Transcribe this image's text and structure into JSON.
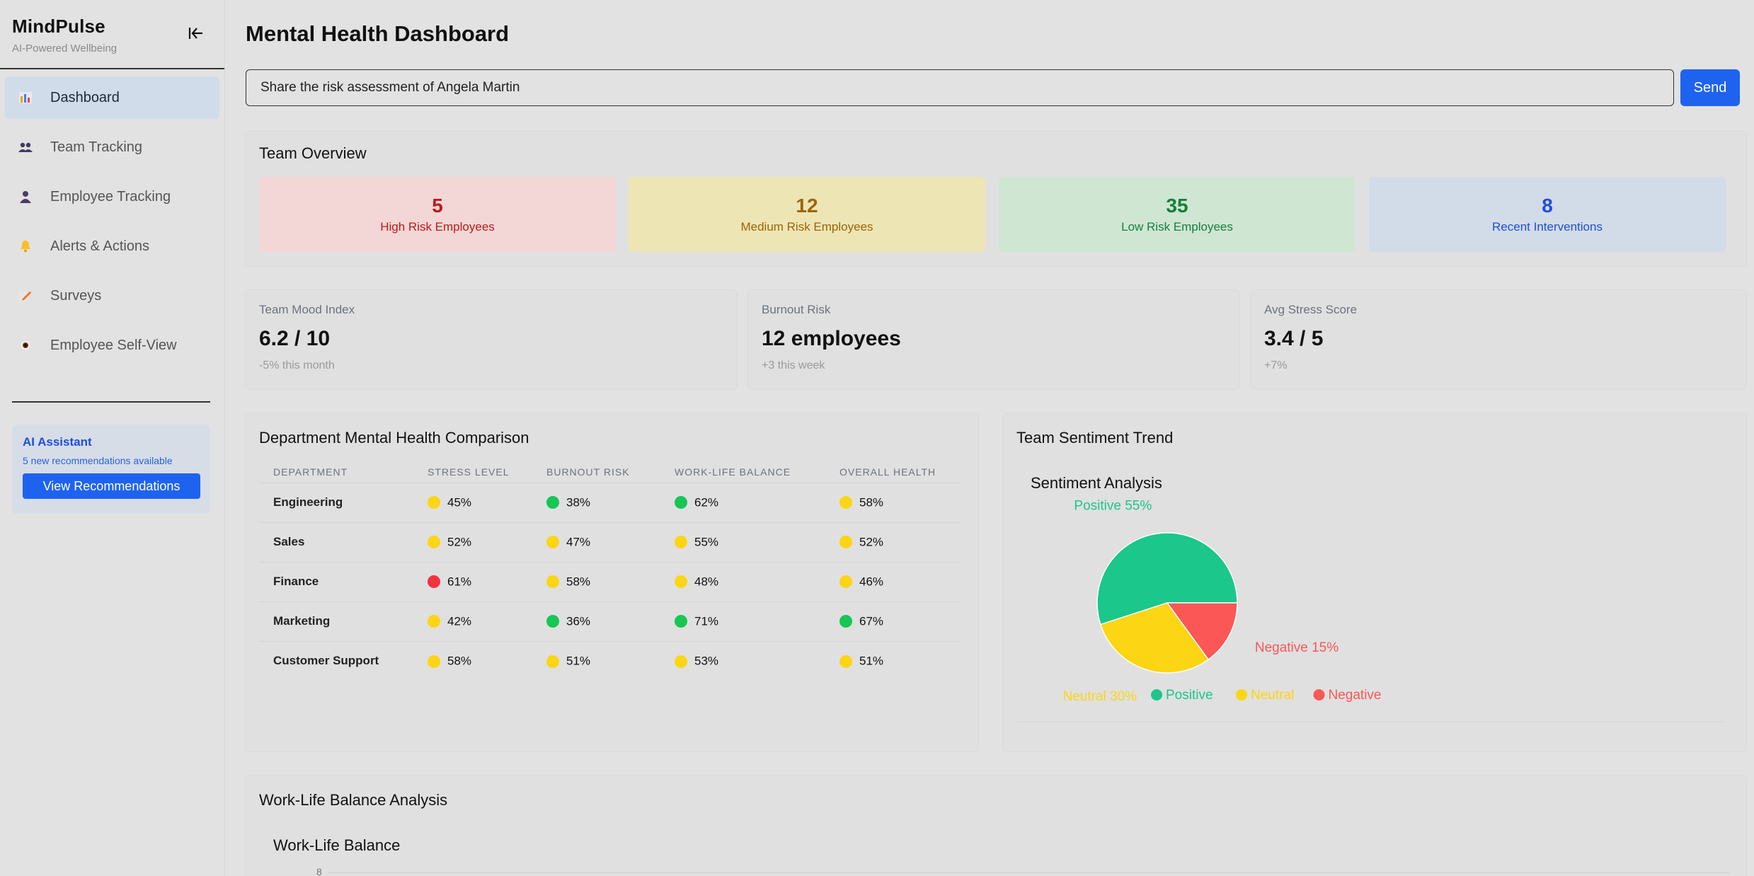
{
  "app": {
    "name": "MindPulse",
    "tagline": "AI-Powered Wellbeing"
  },
  "sidebar": {
    "items": [
      {
        "label": "Dashboard",
        "icon": "bar-chart-icon",
        "active": true
      },
      {
        "label": "Team Tracking",
        "icon": "team-icon"
      },
      {
        "label": "Employee Tracking",
        "icon": "person-icon"
      },
      {
        "label": "Alerts & Actions",
        "icon": "bell-icon"
      },
      {
        "label": "Surveys",
        "icon": "pencil-icon"
      },
      {
        "label": "Employee Self-View",
        "icon": "eye-icon"
      }
    ],
    "ai_box": {
      "title": "AI Assistant",
      "subtitle": "5 new recommendations available",
      "button": "View Recommendations"
    }
  },
  "header": {
    "title": "Mental Health Dashboard"
  },
  "query": {
    "value": "Share the risk assessment of Angela Martin",
    "send_label": "Send"
  },
  "overview": {
    "title": "Team Overview",
    "cards": [
      {
        "value": "5",
        "label": "High Risk Employees",
        "bg": "#f3d6d6",
        "color": "#b91c1c"
      },
      {
        "value": "12",
        "label": "Medium Risk Employees",
        "bg": "#ede6b4",
        "color": "#a16207"
      },
      {
        "value": "35",
        "label": "Low Risk Employees",
        "bg": "#cfe6d2",
        "color": "#15803d"
      },
      {
        "value": "8",
        "label": "Recent Interventions",
        "bg": "#d2dbe8",
        "color": "#1d4ed8"
      }
    ]
  },
  "metrics": [
    {
      "label": "Team Mood Index",
      "value": "6.2 / 10",
      "delta": "-5% this month"
    },
    {
      "label": "Burnout Risk",
      "value": "12 employees",
      "delta": "+3 this week"
    },
    {
      "label": "Avg Stress Score",
      "value": "3.4 / 5",
      "delta": "+7%"
    }
  ],
  "department": {
    "title": "Department Mental Health Comparison",
    "headers": [
      "DEPARTMENT",
      "STRESS LEVEL",
      "BURNOUT RISK",
      "WORK-LIFE BALANCE",
      "OVERALL HEALTH"
    ],
    "rows": [
      {
        "name": "Engineering",
        "cells": [
          {
            "v": "45%",
            "c": "yellow"
          },
          {
            "v": "38%",
            "c": "green"
          },
          {
            "v": "62%",
            "c": "green"
          },
          {
            "v": "58%",
            "c": "yellow"
          }
        ]
      },
      {
        "name": "Sales",
        "cells": [
          {
            "v": "52%",
            "c": "yellow"
          },
          {
            "v": "47%",
            "c": "yellow"
          },
          {
            "v": "55%",
            "c": "yellow"
          },
          {
            "v": "52%",
            "c": "yellow"
          }
        ]
      },
      {
        "name": "Finance",
        "cells": [
          {
            "v": "61%",
            "c": "red"
          },
          {
            "v": "58%",
            "c": "yellow"
          },
          {
            "v": "48%",
            "c": "yellow"
          },
          {
            "v": "46%",
            "c": "yellow"
          }
        ]
      },
      {
        "name": "Marketing",
        "cells": [
          {
            "v": "42%",
            "c": "yellow"
          },
          {
            "v": "36%",
            "c": "green"
          },
          {
            "v": "71%",
            "c": "green"
          },
          {
            "v": "67%",
            "c": "green"
          }
        ]
      },
      {
        "name": "Customer Support",
        "cells": [
          {
            "v": "58%",
            "c": "yellow"
          },
          {
            "v": "51%",
            "c": "yellow"
          },
          {
            "v": "53%",
            "c": "yellow"
          },
          {
            "v": "51%",
            "c": "yellow"
          }
        ]
      }
    ],
    "colors": {
      "yellow": "#fcd514",
      "green": "#17c653",
      "red": "#f5333f"
    }
  },
  "sentiment": {
    "card_title": "Team Sentiment Trend",
    "chart_title": "Sentiment Analysis"
  },
  "chart_data": {
    "type": "pie",
    "title": "Sentiment Analysis",
    "categories": [
      "Positive",
      "Neutral",
      "Negative"
    ],
    "values": [
      55,
      30,
      15
    ],
    "slice_labels": [
      "Positive 55%",
      "Neutral 30%",
      "Negative 15%"
    ],
    "colors": [
      "#1bc78b",
      "#fcd514",
      "#fb5757"
    ],
    "legend": "bottom"
  },
  "worklife": {
    "card_title": "Work-Life Balance Analysis",
    "chart_title": "Work-Life Balance",
    "partial_tick": "8"
  }
}
